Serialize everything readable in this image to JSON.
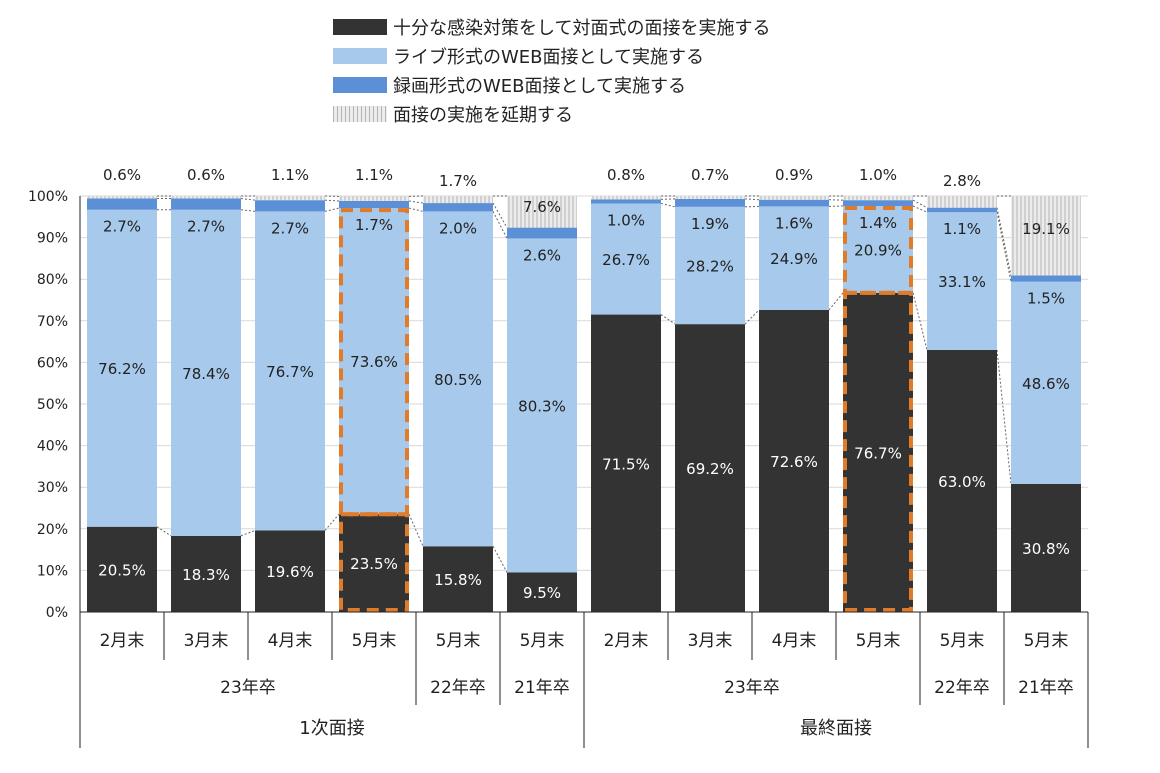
{
  "chart_data": {
    "type": "stacked-bar",
    "title": "",
    "y_axis": {
      "min": 0,
      "max": 100,
      "step": 10,
      "tick_labels": [
        "0%",
        "10%",
        "20%",
        "30%",
        "40%",
        "50%",
        "60%",
        "70%",
        "80%",
        "90%",
        "100%"
      ]
    },
    "series": [
      {
        "name": "十分な感染対策をして対面式の面接を実施する",
        "color": "#333333",
        "values": [
          20.5,
          18.3,
          19.6,
          23.5,
          15.8,
          9.5,
          71.5,
          69.2,
          72.6,
          76.7,
          63.0,
          30.8
        ],
        "labels": [
          "20.5%",
          "18.3%",
          "19.6%",
          "23.5%",
          "15.8%",
          "9.5%",
          "71.5%",
          "69.2%",
          "72.6%",
          "76.7%",
          "63.0%",
          "30.8%"
        ]
      },
      {
        "name": "ライブ形式のWEB面接として実施する",
        "color": "#a6c9ec",
        "values": [
          76.2,
          78.4,
          76.7,
          73.6,
          80.5,
          80.3,
          26.7,
          28.2,
          24.9,
          20.9,
          33.1,
          48.6
        ],
        "labels": [
          "76.2%",
          "78.4%",
          "76.7%",
          "73.6%",
          "80.5%",
          "80.3%",
          "26.7%",
          "28.2%",
          "24.9%",
          "20.9%",
          "33.1%",
          "48.6%"
        ]
      },
      {
        "name": "録画形式のWEB面接として実施する",
        "color": "#5b8fd6",
        "values": [
          2.7,
          2.7,
          2.7,
          1.7,
          2.0,
          2.6,
          1.0,
          1.9,
          1.6,
          1.4,
          1.1,
          1.5
        ],
        "labels": [
          "2.7%",
          "2.7%",
          "2.7%",
          "1.7%",
          "2.0%",
          "2.6%",
          "1.0%",
          "1.9%",
          "1.6%",
          "1.4%",
          "1.1%",
          "1.5%"
        ]
      },
      {
        "name": "面接の実施を延期する",
        "color": "#e2e2e2",
        "values": [
          0.6,
          0.6,
          1.1,
          1.1,
          1.7,
          7.6,
          0.8,
          0.7,
          0.9,
          1.0,
          2.8,
          19.1
        ],
        "labels": [
          "0.6%",
          "0.6%",
          "1.1%",
          "1.1%",
          "1.7%",
          "7.6%",
          "0.8%",
          "0.7%",
          "0.9%",
          "1.0%",
          "2.8%",
          "19.1%"
        ]
      }
    ],
    "categories": [
      "2月末",
      "3月末",
      "4月末",
      "5月末",
      "5月末",
      "5月末",
      "2月末",
      "3月末",
      "4月末",
      "5月末",
      "5月末",
      "5月末"
    ],
    "highlighted": [
      3,
      9
    ],
    "group_level_1": [
      {
        "label": "23年卒",
        "start": 0,
        "end": 3
      },
      {
        "label": "22年卒",
        "start": 4,
        "end": 4
      },
      {
        "label": "21年卒",
        "start": 5,
        "end": 5
      },
      {
        "label": "23年卒",
        "start": 6,
        "end": 9
      },
      {
        "label": "22年卒",
        "start": 10,
        "end": 10
      },
      {
        "label": "21年卒",
        "start": 11,
        "end": 11
      }
    ],
    "group_level_2": [
      {
        "label": "1次面接",
        "start": 0,
        "end": 5
      },
      {
        "label": "最終面接",
        "start": 6,
        "end": 11
      }
    ]
  }
}
